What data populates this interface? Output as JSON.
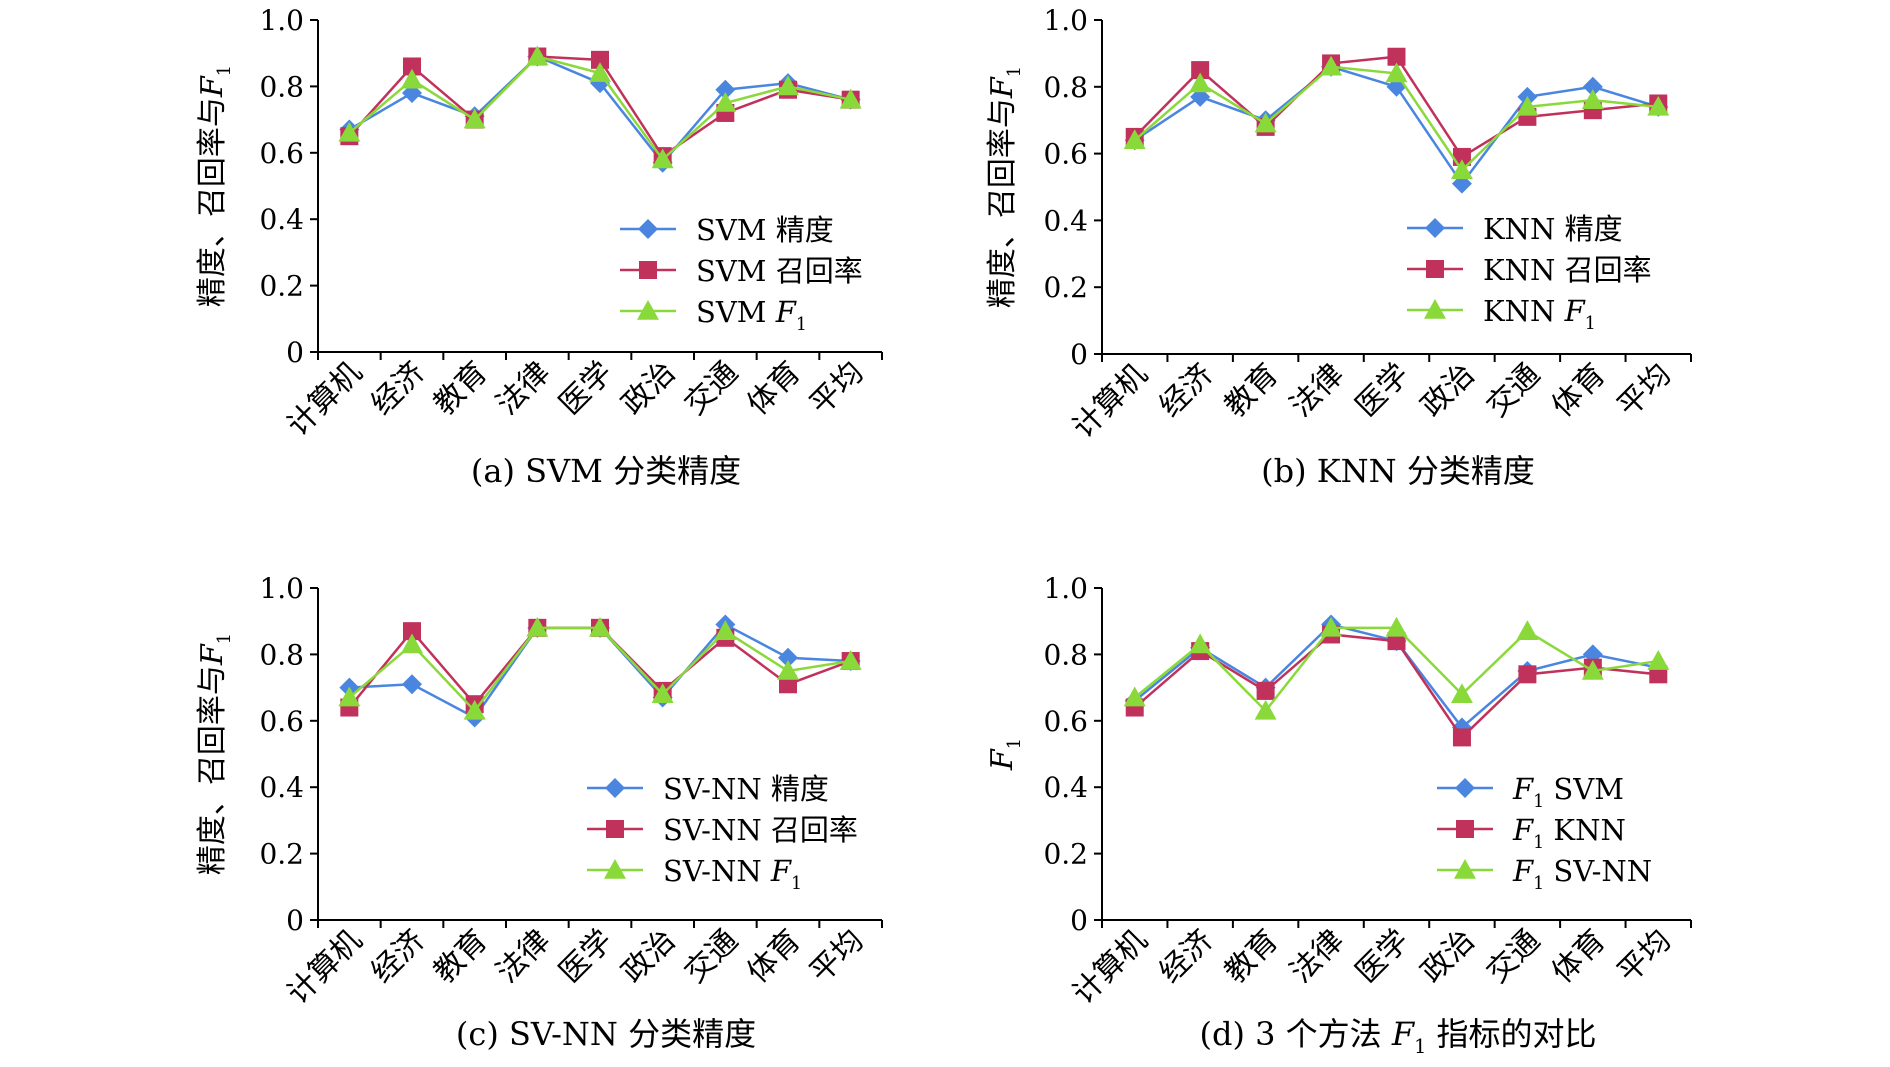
{
  "colors": {
    "series1": "#4a86e0",
    "series2": "#c0325c",
    "series3": "#8ad93a",
    "axis": "#000000"
  },
  "chart_data": [
    {
      "type": "line",
      "ylabel": "精度、召回率与",
      "ylabel_var": "F",
      "ylabel_sub": "1",
      "ylim": [
        0,
        1.0
      ],
      "yticks": [
        "0",
        "0.2",
        "0.4",
        "0.6",
        "0.8",
        "1.0"
      ],
      "categories": [
        "计算机",
        "经济",
        "教育",
        "法律",
        "医学",
        "政治",
        "交通",
        "体育",
        "平均"
      ],
      "series": [
        {
          "name": "SVM 精度",
          "var": "",
          "sub": "",
          "values": [
            0.67,
            0.78,
            0.71,
            0.89,
            0.81,
            0.57,
            0.79,
            0.81,
            0.76
          ]
        },
        {
          "name": "SVM 召回率",
          "var": "",
          "sub": "",
          "values": [
            0.65,
            0.86,
            0.7,
            0.89,
            0.88,
            0.59,
            0.72,
            0.79,
            0.76
          ]
        },
        {
          "name": "SVM ",
          "var": "F",
          "sub": "1",
          "values": [
            0.66,
            0.82,
            0.7,
            0.89,
            0.84,
            0.58,
            0.75,
            0.8,
            0.76
          ]
        }
      ],
      "caption": "(a) SVM 分类精度",
      "caption_var": "",
      "caption_sub": "",
      "caption_tail": ""
    },
    {
      "type": "line",
      "ylabel": "精度、召回率与",
      "ylabel_var": "F",
      "ylabel_sub": "1",
      "ylim": [
        0,
        1.0
      ],
      "yticks": [
        "0",
        "0.2",
        "0.4",
        "0.6",
        "0.8",
        "1.0"
      ],
      "categories": [
        "计算机",
        "经济",
        "教育",
        "法律",
        "医学",
        "政治",
        "交通",
        "体育",
        "平均"
      ],
      "series": [
        {
          "name": "KNN 精度",
          "var": "",
          "sub": "",
          "values": [
            0.64,
            0.77,
            0.7,
            0.86,
            0.8,
            0.51,
            0.77,
            0.8,
            0.74
          ]
        },
        {
          "name": "KNN 召回率",
          "var": "",
          "sub": "",
          "values": [
            0.65,
            0.85,
            0.68,
            0.87,
            0.89,
            0.59,
            0.71,
            0.73,
            0.75
          ]
        },
        {
          "name": "KNN ",
          "var": "F",
          "sub": "1",
          "values": [
            0.64,
            0.81,
            0.69,
            0.86,
            0.84,
            0.55,
            0.74,
            0.76,
            0.74
          ]
        }
      ],
      "caption": "(b) KNN 分类精度",
      "caption_var": "",
      "caption_sub": "",
      "caption_tail": ""
    },
    {
      "type": "line",
      "ylabel": "精度、召回率与",
      "ylabel_var": "F",
      "ylabel_sub": "1",
      "ylim": [
        0,
        1.0
      ],
      "yticks": [
        "0",
        "0.2",
        "0.4",
        "0.6",
        "0.8",
        "1.0"
      ],
      "categories": [
        "计算机",
        "经济",
        "教育",
        "法律",
        "医学",
        "政治",
        "交通",
        "体育",
        "平均"
      ],
      "series": [
        {
          "name": "SV-NN 精度",
          "var": "",
          "sub": "",
          "values": [
            0.7,
            0.71,
            0.61,
            0.88,
            0.88,
            0.67,
            0.89,
            0.79,
            0.78
          ]
        },
        {
          "name": "SV-NN 召回率",
          "var": "",
          "sub": "",
          "values": [
            0.64,
            0.87,
            0.65,
            0.88,
            0.88,
            0.69,
            0.85,
            0.71,
            0.78
          ]
        },
        {
          "name": "SV-NN ",
          "var": "F",
          "sub": "1",
          "values": [
            0.67,
            0.83,
            0.63,
            0.88,
            0.88,
            0.68,
            0.87,
            0.75,
            0.78
          ]
        }
      ],
      "caption": "(c) SV-NN 分类精度",
      "caption_var": "",
      "caption_sub": "",
      "caption_tail": ""
    },
    {
      "type": "line",
      "ylabel": "",
      "ylabel_var": "F",
      "ylabel_sub": "1",
      "ylim": [
        0,
        1.0
      ],
      "yticks": [
        "0",
        "0.2",
        "0.4",
        "0.6",
        "0.8",
        "1.0"
      ],
      "categories": [
        "计算机",
        "经济",
        "教育",
        "法律",
        "医学",
        "政治",
        "交通",
        "体育",
        "平均"
      ],
      "series": [
        {
          "name": " SVM",
          "var": "F",
          "sub": "1",
          "lead": true,
          "values": [
            0.66,
            0.82,
            0.7,
            0.89,
            0.84,
            0.58,
            0.75,
            0.8,
            0.76
          ]
        },
        {
          "name": " KNN",
          "var": "F",
          "sub": "1",
          "lead": true,
          "values": [
            0.64,
            0.81,
            0.69,
            0.86,
            0.84,
            0.55,
            0.74,
            0.76,
            0.74
          ]
        },
        {
          "name": " SV-NN",
          "var": "F",
          "sub": "1",
          "lead": true,
          "values": [
            0.67,
            0.83,
            0.63,
            0.88,
            0.88,
            0.68,
            0.87,
            0.75,
            0.78
          ]
        }
      ],
      "caption": "(d) 3 个方法 ",
      "caption_var": "F",
      "caption_sub": "1",
      "caption_tail": " 指标的对比"
    }
  ]
}
